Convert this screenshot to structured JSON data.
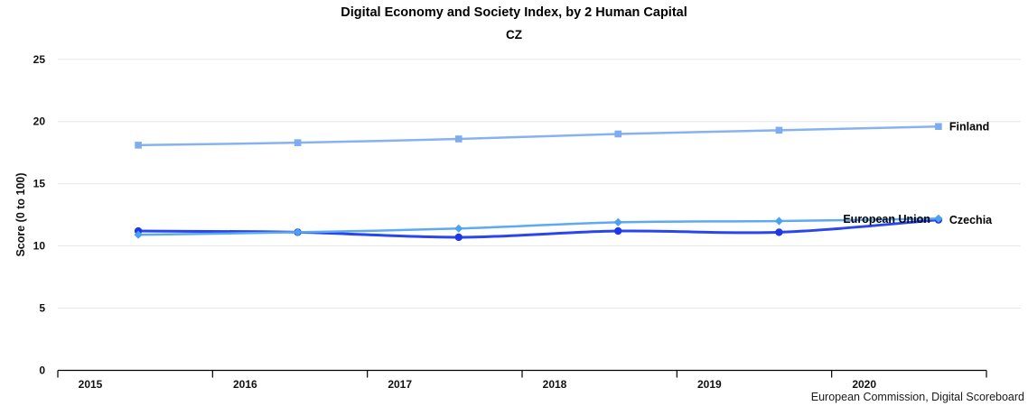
{
  "header": {
    "title": "Digital Economy and Society Index, by 2 Human Capital",
    "subtitle": "CZ"
  },
  "chart_data": {
    "type": "line",
    "title": "Digital Economy and Society Index, by 2 Human Capital",
    "subtitle": "CZ",
    "xlabel": "",
    "ylabel": "Score (0 to 100)",
    "source": "European Commission, Digital Scoreboard",
    "xlim": [
      2015,
      2021
    ],
    "ylim": [
      0,
      25
    ],
    "x_ticks": [
      2015,
      2016,
      2017,
      2018,
      2019,
      2020
    ],
    "y_ticks": [
      0,
      5,
      10,
      15,
      20,
      25
    ],
    "grid": "horizontal",
    "grid_color": "#e7e7e7",
    "axis_color": "#000000",
    "legend_position": "line-end-labels",
    "x": [
      2015.52,
      2016.55,
      2017.59,
      2018.62,
      2019.66,
      2020.69
    ],
    "series": [
      {
        "name": "Finland",
        "color": "#87b2f2",
        "marker": "square",
        "marker_color": "#7dacf1",
        "line_width": 2.5,
        "label_side": "right",
        "values": [
          18.1,
          18.3,
          18.6,
          19.0,
          19.3,
          19.6
        ]
      },
      {
        "name": "European Union",
        "color": "#5da9f4",
        "marker": "diamond",
        "marker_color": "#4da1f1",
        "line_width": 2.5,
        "label_side": "left",
        "values": [
          10.9,
          11.1,
          11.4,
          11.9,
          12.0,
          12.2
        ]
      },
      {
        "name": "Czechia",
        "color": "#2945ef",
        "marker": "circle",
        "marker_color": "#1d38e9",
        "line_width": 3,
        "label_side": "right",
        "values": [
          11.2,
          11.1,
          10.7,
          11.2,
          11.1,
          12.1
        ]
      }
    ]
  }
}
